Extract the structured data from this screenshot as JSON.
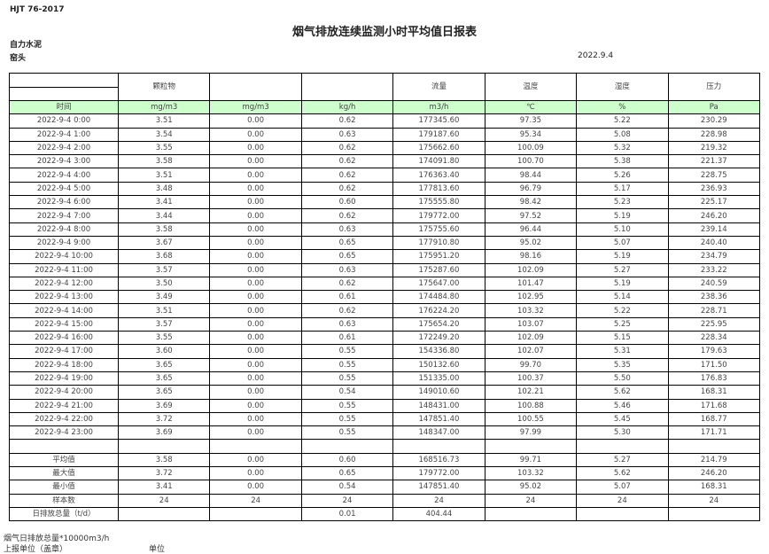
{
  "header": {
    "standard": "HJT  76-2017",
    "title": "烟气排放连续监测小时平均值日报表",
    "company": "自力水泥",
    "unit": "窑头",
    "date": "2022.9.4"
  },
  "columns": [
    "",
    "颗粒物",
    "",
    "",
    "流量",
    "温度",
    "湿度",
    "压力"
  ],
  "units": [
    "时间",
    "mg/m3",
    "mg/m3",
    "kg/h",
    "m3/h",
    "℃",
    "%",
    "Pa"
  ],
  "rows": [
    [
      "2022-9-4 0:00",
      "3.51",
      "0.00",
      "0.62",
      "177345.60",
      "97.35",
      "5.22",
      "230.29"
    ],
    [
      "2022-9-4 1:00",
      "3.54",
      "0.00",
      "0.63",
      "179187.60",
      "95.34",
      "5.08",
      "228.98"
    ],
    [
      "2022-9-4 2:00",
      "3.55",
      "0.00",
      "0.62",
      "175662.60",
      "100.09",
      "5.32",
      "219.32"
    ],
    [
      "2022-9-4 3:00",
      "3.58",
      "0.00",
      "0.62",
      "174091.80",
      "100.70",
      "5.38",
      "221.37"
    ],
    [
      "2022-9-4 4:00",
      "3.51",
      "0.00",
      "0.62",
      "176363.40",
      "98.44",
      "5.26",
      "228.75"
    ],
    [
      "2022-9-4 5:00",
      "3.48",
      "0.00",
      "0.62",
      "177813.60",
      "96.79",
      "5.17",
      "236.93"
    ],
    [
      "2022-9-4 6:00",
      "3.41",
      "0.00",
      "0.60",
      "175555.80",
      "98.42",
      "5.23",
      "225.17"
    ],
    [
      "2022-9-4 7:00",
      "3.44",
      "0.00",
      "0.62",
      "179772.00",
      "97.52",
      "5.19",
      "246.20"
    ],
    [
      "2022-9-4 8:00",
      "3.58",
      "0.00",
      "0.63",
      "175755.60",
      "96.44",
      "5.10",
      "239.14"
    ],
    [
      "2022-9-4 9:00",
      "3.67",
      "0.00",
      "0.65",
      "177910.80",
      "95.02",
      "5.07",
      "240.40"
    ],
    [
      "2022-9-4 10:00",
      "3.68",
      "0.00",
      "0.65",
      "175951.20",
      "98.16",
      "5.19",
      "234.79"
    ],
    [
      "2022-9-4 11:00",
      "3.57",
      "0.00",
      "0.63",
      "175287.60",
      "102.09",
      "5.27",
      "233.22"
    ],
    [
      "2022-9-4 12:00",
      "3.50",
      "0.00",
      "0.62",
      "175647.00",
      "101.47",
      "5.19",
      "240.59"
    ],
    [
      "2022-9-4 13:00",
      "3.49",
      "0.00",
      "0.61",
      "174484.80",
      "102.95",
      "5.14",
      "238.36"
    ],
    [
      "2022-9-4 14:00",
      "3.51",
      "0.00",
      "0.62",
      "176224.20",
      "103.32",
      "5.22",
      "228.71"
    ],
    [
      "2022-9-4 15:00",
      "3.57",
      "0.00",
      "0.63",
      "175654.20",
      "103.07",
      "5.25",
      "225.95"
    ],
    [
      "2022-9-4 16:00",
      "3.55",
      "0.00",
      "0.61",
      "172249.20",
      "102.09",
      "5.15",
      "228.34"
    ],
    [
      "2022-9-4 17:00",
      "3.60",
      "0.00",
      "0.55",
      "154336.80",
      "102.07",
      "5.31",
      "179.63"
    ],
    [
      "2022-9-4 18:00",
      "3.65",
      "0.00",
      "0.55",
      "150132.60",
      "99.70",
      "5.35",
      "171.50"
    ],
    [
      "2022-9-4 19:00",
      "3.65",
      "0.00",
      "0.55",
      "151335.00",
      "100.37",
      "5.50",
      "176.83"
    ],
    [
      "2022-9-4 20:00",
      "3.65",
      "0.00",
      "0.54",
      "149010.60",
      "102.21",
      "5.62",
      "168.31"
    ],
    [
      "2022-9-4 21:00",
      "3.69",
      "0.00",
      "0.55",
      "148431.00",
      "100.88",
      "5.46",
      "171.68"
    ],
    [
      "2022-9-4 22:00",
      "3.72",
      "0.00",
      "0.55",
      "147851.40",
      "100.55",
      "5.45",
      "168.77"
    ],
    [
      "2022-9-4 23:00",
      "3.69",
      "0.00",
      "0.55",
      "148347.00",
      "97.99",
      "5.30",
      "171.71"
    ],
    [
      "",
      "",
      "",
      "",
      "",
      "",
      "",
      ""
    ],
    [
      "平均值",
      "3.58",
      "0.00",
      "0.60",
      "168516.73",
      "99.71",
      "5.27",
      "214.79"
    ],
    [
      "最大值",
      "3.72",
      "0.00",
      "0.65",
      "179772.00",
      "103.32",
      "5.62",
      "246.20"
    ],
    [
      "最小值",
      "3.41",
      "0.00",
      "0.54",
      "147851.40",
      "95.02",
      "5.07",
      "168.31"
    ],
    [
      "样本数",
      "24",
      "24",
      "24",
      "24",
      "24",
      "24",
      "24"
    ],
    [
      "日排放总量（t/d）",
      "",
      "",
      "0.01",
      "404.44",
      "",
      "",
      ""
    ]
  ],
  "footer": {
    "flow_note": "烟气日排放总量*10000m3/h",
    "report_unit": "上报单位（盖章）",
    "unit_label": "单位"
  },
  "colors": {
    "unit_row_bg": "#ccffcc"
  }
}
